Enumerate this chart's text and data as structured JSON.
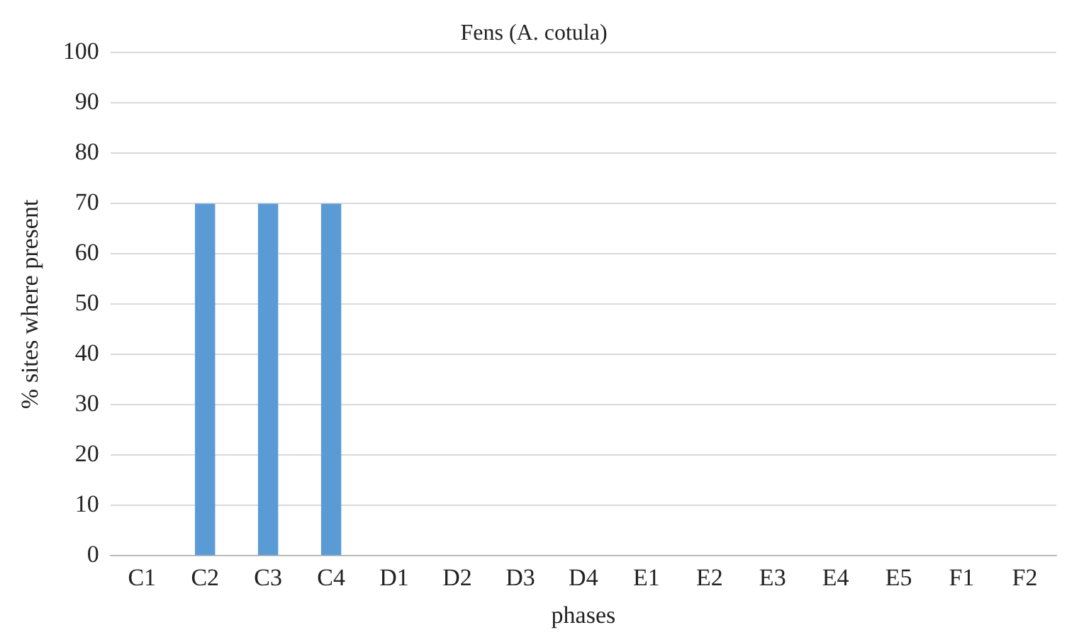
{
  "chart_data": {
    "type": "bar",
    "title": "Fens (A. cotula)",
    "xlabel": "phases",
    "ylabel": "% sites where present",
    "categories": [
      "C1",
      "C2",
      "C3",
      "C4",
      "D1",
      "D2",
      "D3",
      "D4",
      "E1",
      "E2",
      "E3",
      "E4",
      "E5",
      "F1",
      "F2"
    ],
    "values": [
      0,
      70,
      70,
      70,
      0,
      0,
      0,
      0,
      0,
      0,
      0,
      0,
      0,
      0,
      0
    ],
    "color": "#5b9bd5",
    "ylim": [
      0,
      100
    ],
    "yticks": [
      0,
      10,
      20,
      30,
      40,
      50,
      60,
      70,
      80,
      90,
      100
    ],
    "grid": "y",
    "legend": false
  }
}
